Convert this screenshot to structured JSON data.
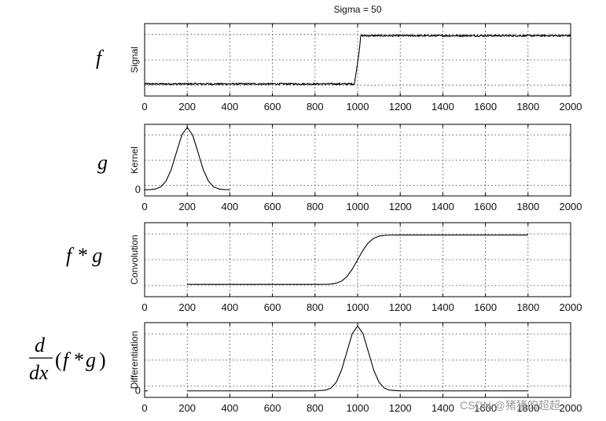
{
  "chart_data": [
    {
      "type": "line",
      "title": "Sigma = 50",
      "ylabel": "Signal",
      "math_label": "f",
      "xlim": [
        0,
        2000
      ],
      "xticks": [
        0,
        200,
        400,
        600,
        800,
        1000,
        1200,
        1400,
        1600,
        1800,
        2000
      ],
      "ylim": [
        -0.25,
        1.25
      ],
      "yticks": [],
      "noise": 0.018,
      "x": [
        0,
        985,
        1005,
        1015,
        2000
      ],
      "y": [
        0,
        0,
        0.6,
        1,
        1
      ]
    },
    {
      "type": "line",
      "title": "",
      "ylabel": "Kernel",
      "math_label": "g",
      "xlim": [
        0,
        2000
      ],
      "xticks": [
        0,
        200,
        400,
        600,
        800,
        1000,
        1200,
        1400,
        1600,
        1800,
        2000
      ],
      "ylim": [
        -0.1,
        1.05
      ],
      "yticks": [
        0
      ],
      "x": [
        0,
        25,
        50,
        75,
        100,
        125,
        150,
        175,
        200,
        225,
        250,
        275,
        300,
        325,
        350,
        375,
        400
      ],
      "y": [
        0,
        0.002,
        0.011,
        0.044,
        0.135,
        0.325,
        0.607,
        0.882,
        1,
        0.882,
        0.607,
        0.325,
        0.135,
        0.044,
        0.011,
        0.002,
        0
      ]
    },
    {
      "type": "line",
      "title": "",
      "ylabel": "Convolution",
      "math_label": "f * g",
      "xlim": [
        0,
        2000
      ],
      "xticks": [
        0,
        200,
        400,
        600,
        800,
        1000,
        1200,
        1400,
        1600,
        1800,
        2000
      ],
      "ylim": [
        -0.25,
        1.25
      ],
      "yticks": [],
      "x": [
        200,
        800,
        850,
        875,
        900,
        925,
        950,
        975,
        1000,
        1025,
        1050,
        1075,
        1100,
        1125,
        1150,
        1200,
        1800
      ],
      "y": [
        0,
        0,
        0.0013,
        0.0062,
        0.0228,
        0.0668,
        0.1587,
        0.3085,
        0.5,
        0.6915,
        0.8413,
        0.9332,
        0.9772,
        0.9938,
        0.9987,
        1,
        1
      ]
    },
    {
      "type": "line",
      "title": "",
      "ylabel": "Differentiation",
      "math_label": "d/dx (f * g)",
      "xlim": [
        0,
        2000
      ],
      "xticks": [
        0,
        200,
        400,
        600,
        800,
        1000,
        1200,
        1400,
        1600,
        1800,
        2000
      ],
      "ylim": [
        -0.1,
        1.05
      ],
      "yticks": [
        0
      ],
      "x": [
        200,
        800,
        850,
        875,
        900,
        925,
        950,
        975,
        1000,
        1025,
        1050,
        1075,
        1100,
        1125,
        1150,
        1200,
        1800
      ],
      "y": [
        0,
        0,
        0.011,
        0.044,
        0.135,
        0.325,
        0.607,
        0.882,
        1,
        0.882,
        0.607,
        0.325,
        0.135,
        0.044,
        0.011,
        0,
        0
      ]
    }
  ],
  "watermark": "CSDN @猪猪的超超"
}
